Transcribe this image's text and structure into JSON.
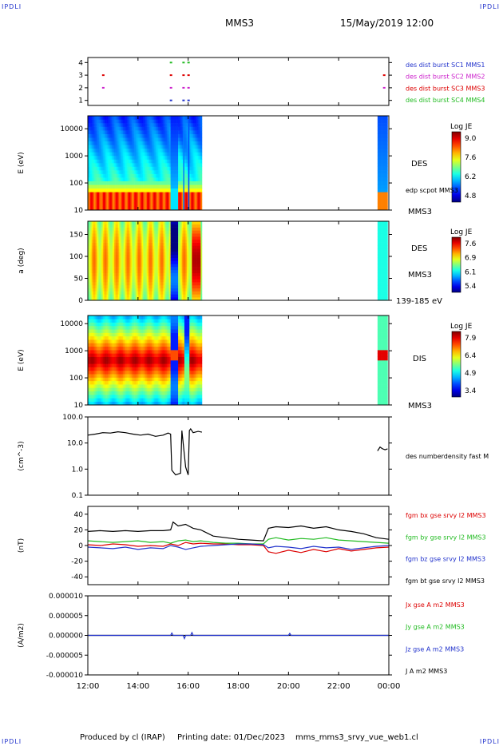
{
  "corners": {
    "top_left": "IPDLI",
    "top_right": "IPDLI",
    "bottom_left": "IPDLI",
    "bottom_right": "IPDLI"
  },
  "header": {
    "spacecraft": "MMS3",
    "datetime": "15/May/2019 12:00"
  },
  "footer": {
    "produced_by": "Produced by cl (IRAP)",
    "printing_date": "Printing date: 01/Dec/2023",
    "config": "mms_mms3_srvy_vue_web1.cl"
  },
  "x_axis": {
    "range_hours": [
      12,
      24
    ],
    "ticks": [
      "12:00",
      "14:00",
      "16:00",
      "18:00",
      "20:00",
      "22:00",
      "00:00"
    ]
  },
  "colors": {
    "blue": "#2233cc",
    "magenta": "#cc22cc",
    "red": "#dd0000",
    "green": "#22bb22",
    "black": "#000000"
  },
  "chart_data": [
    {
      "type": "scatter",
      "id": "burst",
      "y_ticks": [
        "1",
        "2",
        "3",
        "4"
      ],
      "ylim": [
        0.6,
        4.4
      ],
      "legend": [
        {
          "label": "des dist burst SC1 MMS1",
          "color": "#2233cc"
        },
        {
          "label": "des dist burst SC2 MMS2",
          "color": "#cc22cc"
        },
        {
          "label": "des dist burst SC3 MMS3",
          "color": "#dd0000"
        },
        {
          "label": "des dist burst SC4 MMS4",
          "color": "#22bb22"
        }
      ],
      "series": [
        {
          "name": "des dist burst SC1 MMS1",
          "y": 1,
          "x": [
            15.3,
            15.8,
            16.0
          ]
        },
        {
          "name": "des dist burst SC2 MMS2",
          "y": 2,
          "x": [
            12.6,
            15.3,
            15.8,
            16.0,
            23.8
          ]
        },
        {
          "name": "des dist burst SC3 MMS3",
          "y": 3,
          "x": [
            12.6,
            15.3,
            15.8,
            16.0,
            23.8
          ]
        },
        {
          "name": "des dist burst SC4 MMS4",
          "y": 4,
          "x": [
            15.3,
            15.8,
            16.0
          ]
        }
      ]
    },
    {
      "type": "heatmap",
      "id": "des_energy",
      "ylabel": "E (eV)",
      "y_scale": "log",
      "ylim": [
        10,
        30000
      ],
      "y_ticks": [
        "10",
        "100",
        "1000",
        "10000"
      ],
      "coverage_hours": [
        [
          12.0,
          16.55
        ],
        [
          23.55,
          23.95
        ]
      ],
      "colorbar": {
        "label": "Log JE",
        "ticks": [
          "9.0",
          "7.6",
          "6.2",
          "4.8"
        ],
        "range": [
          4.8,
          9.0
        ]
      },
      "labels": [
        "DES",
        "edp scpot MMS3",
        "MMS3"
      ]
    },
    {
      "type": "heatmap",
      "id": "des_pitch",
      "ylabel": "a (deg)",
      "ylim": [
        0,
        180
      ],
      "y_ticks": [
        "0",
        "50",
        "100",
        "150"
      ],
      "coverage_hours": [
        [
          12.0,
          16.55
        ],
        [
          23.55,
          23.95
        ]
      ],
      "colorbar": {
        "label": "Log JE",
        "ticks": [
          "7.6",
          "6.9",
          "6.1",
          "5.4"
        ],
        "range": [
          5.4,
          7.6
        ]
      },
      "labels": [
        "DES",
        "MMS3",
        "139-185 eV"
      ]
    },
    {
      "type": "heatmap",
      "id": "dis_energy",
      "ylabel": "E (eV)",
      "y_scale": "log",
      "ylim": [
        10,
        20000
      ],
      "y_ticks": [
        "10",
        "100",
        "1000",
        "10000"
      ],
      "coverage_hours": [
        [
          12.0,
          16.55
        ],
        [
          23.55,
          23.95
        ]
      ],
      "colorbar": {
        "label": "Log JE",
        "ticks": [
          "7.9",
          "6.4",
          "4.9",
          "3.4"
        ],
        "range": [
          3.4,
          7.9
        ]
      },
      "labels": [
        "DIS",
        "MMS3"
      ]
    },
    {
      "type": "line",
      "id": "density",
      "ylabel": "(cm^-3)",
      "y_scale": "log",
      "ylim": [
        0.1,
        100
      ],
      "y_ticks": [
        "0.1",
        "1.0",
        "10.0",
        "100.0"
      ],
      "legend": [
        {
          "label": "des numberdensity fast M",
          "color": "#000000"
        }
      ],
      "series": [
        {
          "name": "des numberdensity fast M",
          "color": "#000000",
          "x": [
            12.0,
            12.3,
            12.6,
            12.9,
            13.2,
            13.5,
            13.8,
            14.1,
            14.4,
            14.7,
            15.0,
            15.2,
            15.3,
            15.35,
            15.5,
            15.7,
            15.75,
            15.9,
            16.0,
            16.05,
            16.1,
            16.2,
            16.4,
            16.55
          ],
          "y": [
            20,
            22,
            25,
            24,
            27,
            25,
            22,
            20,
            22,
            18,
            20,
            24,
            22,
            0.9,
            0.6,
            0.7,
            30,
            1.2,
            0.6,
            30,
            35,
            25,
            28,
            26
          ]
        },
        {
          "name": "des numberdensity fast M",
          "color": "#000000",
          "x": [
            23.55,
            23.65,
            23.75,
            23.85,
            23.95
          ],
          "y": [
            5,
            7,
            6,
            5.5,
            6
          ]
        }
      ]
    },
    {
      "type": "line",
      "id": "magnetic_field",
      "ylabel": "(nT)",
      "ylim": [
        -50,
        50
      ],
      "y_ticks": [
        "-40",
        "-20",
        "0",
        "20",
        "40"
      ],
      "legend": [
        {
          "label": "fgm bx gse srvy l2 MMS3",
          "color": "#dd0000"
        },
        {
          "label": "fgm by gse srvy l2 MMS3",
          "color": "#22bb22"
        },
        {
          "label": "fgm bz gse srvy l2 MMS3",
          "color": "#2233cc"
        },
        {
          "label": "fgm bt gse srvy l2 MMS3",
          "color": "#000000"
        }
      ],
      "series": [
        {
          "name": "fgm bx gse srvy l2 MMS3",
          "color": "#dd0000",
          "x": [
            12.0,
            12.5,
            13.0,
            13.5,
            14.0,
            14.5,
            15.0,
            15.3,
            15.6,
            15.9,
            16.2,
            16.5,
            17.0,
            17.5,
            18.0,
            18.5,
            19.0,
            19.2,
            19.5,
            20.0,
            20.5,
            21.0,
            21.5,
            22.0,
            22.5,
            23.0,
            23.5,
            24.0
          ],
          "y": [
            1,
            0,
            2,
            1,
            -1,
            0,
            -1,
            2,
            0,
            4,
            2,
            3,
            2,
            2,
            1,
            1,
            0,
            -8,
            -10,
            -6,
            -9,
            -5,
            -8,
            -4,
            -7,
            -5,
            -3,
            -2
          ]
        },
        {
          "name": "fgm by gse srvy l2 MMS3",
          "color": "#22bb22",
          "x": [
            12.0,
            12.5,
            13.0,
            13.5,
            14.0,
            14.5,
            15.0,
            15.3,
            15.6,
            15.9,
            16.2,
            16.5,
            17.0,
            17.5,
            18.0,
            18.5,
            19.0,
            19.2,
            19.5,
            20.0,
            20.5,
            21.0,
            21.5,
            22.0,
            22.5,
            23.0,
            23.5,
            24.0
          ],
          "y": [
            6,
            5,
            4,
            5,
            6,
            4,
            5,
            3,
            6,
            7,
            5,
            6,
            4,
            3,
            3,
            2,
            2,
            8,
            10,
            7,
            9,
            8,
            10,
            7,
            6,
            5,
            4,
            3
          ]
        },
        {
          "name": "fgm bz gse srvy l2 MMS3",
          "color": "#2233cc",
          "x": [
            12.0,
            12.5,
            13.0,
            13.5,
            14.0,
            14.5,
            15.0,
            15.3,
            15.6,
            15.9,
            16.2,
            16.5,
            17.0,
            17.5,
            18.0,
            18.5,
            19.0,
            19.2,
            19.5,
            20.0,
            20.5,
            21.0,
            21.5,
            22.0,
            22.5,
            23.0,
            23.5,
            24.0
          ],
          "y": [
            -2,
            -3,
            -4,
            -2,
            -5,
            -3,
            -4,
            0,
            -2,
            -5,
            -3,
            -1,
            0,
            1,
            2,
            2,
            1,
            -3,
            -1,
            -2,
            -4,
            -1,
            -3,
            -2,
            -5,
            -3,
            -1,
            0
          ]
        },
        {
          "name": "fgm bt gse srvy l2 MMS3",
          "color": "#000000",
          "x": [
            12.0,
            12.5,
            13.0,
            13.5,
            14.0,
            14.5,
            15.0,
            15.3,
            15.4,
            15.6,
            15.9,
            16.2,
            16.5,
            17.0,
            17.5,
            18.0,
            18.5,
            19.0,
            19.2,
            19.5,
            20.0,
            20.5,
            21.0,
            21.5,
            22.0,
            22.5,
            23.0,
            23.5,
            24.0
          ],
          "y": [
            18,
            19,
            18,
            19,
            18,
            19,
            19,
            20,
            30,
            25,
            27,
            22,
            20,
            12,
            10,
            8,
            7,
            6,
            22,
            24,
            23,
            25,
            22,
            24,
            20,
            18,
            15,
            10,
            8
          ]
        }
      ]
    },
    {
      "type": "line",
      "id": "current_density",
      "ylabel": "(A/m2)",
      "ylim": [
        -1e-05,
        1e-05
      ],
      "y_ticks": [
        "-0.000010",
        "-0.000005",
        "0.000000",
        "0.000005",
        "0.000010"
      ],
      "legend": [
        {
          "label": "Jx gse A m2 MMS3",
          "color": "#dd0000"
        },
        {
          "label": "Jy gse A m2 MMS3",
          "color": "#22bb22"
        },
        {
          "label": "Jz gse A m2 MMS3",
          "color": "#2233cc"
        },
        {
          "label": "J A m2 MMS3",
          "color": "#000000"
        }
      ],
      "series": [
        {
          "name": "J A m2 MMS3",
          "color": "#000000",
          "x": [
            12.0,
            24.0
          ],
          "y": [
            0,
            0
          ]
        },
        {
          "name": "Jz gse A m2 MMS3",
          "color": "#2233cc",
          "x": [
            12.0,
            15.3,
            15.35,
            15.4,
            15.8,
            15.85,
            15.9,
            16.1,
            16.15,
            16.2,
            17.0,
            20.0,
            20.05,
            20.1,
            24.0
          ],
          "y": [
            0,
            0,
            6e-07,
            0,
            0,
            -8e-07,
            0,
            0,
            7e-07,
            0,
            0,
            0,
            5e-07,
            0,
            0
          ]
        }
      ]
    }
  ]
}
